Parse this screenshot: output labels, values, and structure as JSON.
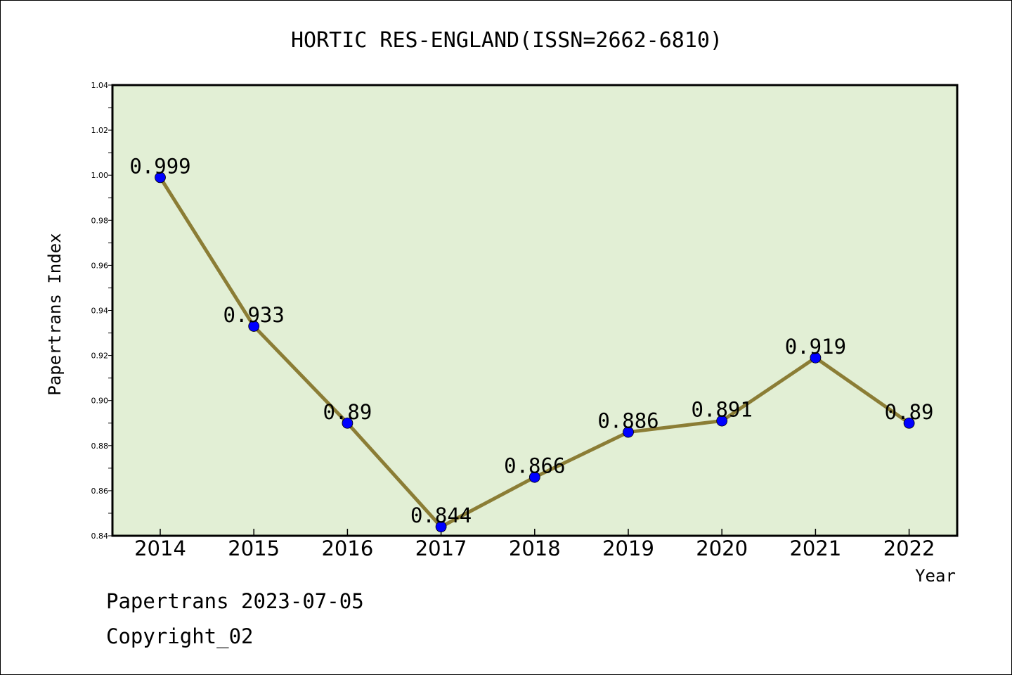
{
  "chart_data": {
    "type": "line",
    "title": "HORTIC RES-ENGLAND(ISSN=2662-6810)",
    "xlabel": "Year",
    "ylabel": "Papertrans Index",
    "categories": [
      "2014",
      "2015",
      "2016",
      "2017",
      "2018",
      "2019",
      "2020",
      "2021",
      "2022"
    ],
    "series": [
      {
        "values": [
          0.999,
          0.933,
          0.89,
          0.844,
          0.866,
          0.886,
          0.891,
          0.919,
          0.89
        ],
        "labels": [
          "0.999",
          "0.933",
          "0.89",
          "0.844",
          "0.866",
          "0.886",
          "0.891",
          "0.919",
          "0.89"
        ],
        "line_color": "#8b7d35",
        "marker_color": "#0000ff"
      }
    ],
    "ylim": [
      0.84,
      1.04
    ],
    "yticks": [
      "0.84",
      "0.86",
      "0.88",
      "0.90",
      "0.92",
      "0.94",
      "0.96",
      "0.98",
      "1.00",
      "1.02",
      "1.04"
    ],
    "plot_background": "#e2efd5",
    "grid": false
  },
  "footer": {
    "line1": "Papertrans 2023-07-05",
    "line2": "Copyright_02"
  }
}
